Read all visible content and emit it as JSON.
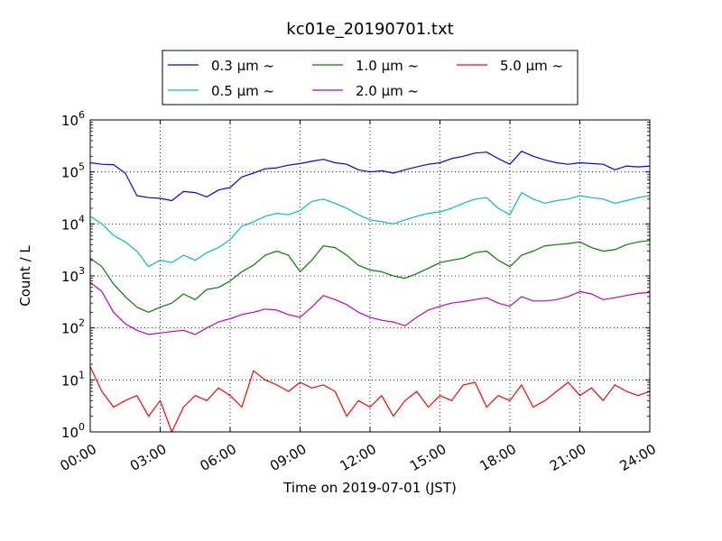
{
  "chart_data": {
    "type": "line",
    "title": "kc01e_20190701.txt",
    "xlabel": "Time on 2019-07-01 (JST)",
    "ylabel": "Count / L",
    "xlim": [
      0,
      24
    ],
    "ylim": [
      1,
      1000000
    ],
    "yscale": "log",
    "grid": true,
    "legend_position": "top-center",
    "x_ticks": [
      0,
      3,
      6,
      9,
      12,
      15,
      18,
      21,
      24
    ],
    "x_tick_labels": [
      "00:00",
      "03:00",
      "06:00",
      "09:00",
      "12:00",
      "15:00",
      "18:00",
      "21:00",
      "24:00"
    ],
    "y_tick_labels": [
      {
        "base": "10",
        "exp": "0"
      },
      {
        "base": "10",
        "exp": "1"
      },
      {
        "base": "10",
        "exp": "2"
      },
      {
        "base": "10",
        "exp": "3"
      },
      {
        "base": "10",
        "exp": "4"
      },
      {
        "base": "10",
        "exp": "5"
      },
      {
        "base": "10",
        "exp": "6"
      }
    ],
    "x": [
      0,
      0.5,
      1,
      1.5,
      2,
      2.5,
      3,
      3.5,
      4,
      4.5,
      5,
      5.5,
      6,
      6.5,
      7,
      7.5,
      8,
      8.5,
      9,
      9.5,
      10,
      10.5,
      11,
      11.5,
      12,
      12.5,
      13,
      13.5,
      14,
      14.5,
      15,
      15.5,
      16,
      16.5,
      17,
      17.5,
      18,
      18.5,
      19,
      19.5,
      20,
      20.5,
      21,
      21.5,
      22,
      22.5,
      23,
      23.5,
      24
    ],
    "series": [
      {
        "name": "0.3 μm ~",
        "color": "#0000ff",
        "values": [
          150000,
          140000,
          138000,
          95000,
          35000,
          32000,
          31000,
          28000,
          42000,
          40000,
          33000,
          45000,
          50000,
          80000,
          95000,
          115000,
          120000,
          135000,
          145000,
          160000,
          175000,
          150000,
          140000,
          110000,
          100000,
          105000,
          95000,
          110000,
          125000,
          140000,
          150000,
          180000,
          200000,
          230000,
          240000,
          180000,
          140000,
          250000,
          200000,
          170000,
          150000,
          140000,
          150000,
          145000,
          140000,
          110000,
          130000,
          125000,
          130000
        ]
      },
      {
        "name": "0.5 μm ~",
        "color": "#00bfbf",
        "values": [
          14000,
          10000,
          6000,
          4500,
          3000,
          1500,
          2000,
          1800,
          2500,
          2000,
          2800,
          3500,
          5000,
          9000,
          11000,
          14000,
          16000,
          15000,
          18000,
          27000,
          30000,
          25000,
          20000,
          15000,
          12000,
          11000,
          10000,
          12000,
          14000,
          16000,
          17000,
          20000,
          25000,
          30000,
          32000,
          20000,
          15000,
          40000,
          30000,
          25000,
          28000,
          30000,
          35000,
          32000,
          30000,
          25000,
          28000,
          32000,
          35000
        ]
      },
      {
        "name": "1.0 μm ~",
        "color": "#008000",
        "values": [
          2200,
          1500,
          700,
          400,
          250,
          200,
          250,
          300,
          450,
          350,
          550,
          600,
          800,
          1200,
          1600,
          2500,
          3000,
          2500,
          1200,
          2000,
          3800,
          3500,
          2500,
          1600,
          1300,
          1200,
          1000,
          900,
          1100,
          1400,
          1800,
          2000,
          2200,
          2800,
          3000,
          2000,
          1500,
          2500,
          3000,
          3800,
          4000,
          4200,
          4500,
          3500,
          3000,
          3200,
          4000,
          4500,
          4800
        ]
      },
      {
        "name": "2.0 μm ~",
        "color": "#bf00bf",
        "values": [
          750,
          500,
          200,
          120,
          90,
          75,
          80,
          85,
          90,
          75,
          100,
          130,
          150,
          180,
          200,
          230,
          220,
          180,
          160,
          250,
          420,
          350,
          280,
          200,
          160,
          140,
          130,
          110,
          160,
          220,
          260,
          300,
          320,
          350,
          380,
          300,
          260,
          400,
          330,
          330,
          350,
          400,
          500,
          450,
          350,
          380,
          420,
          460,
          480
        ]
      },
      {
        "name": "5.0 μm ~",
        "color": "#ff0000",
        "values": [
          18,
          6,
          3,
          4,
          5,
          2,
          4,
          1,
          3,
          5,
          4,
          7,
          5,
          3,
          15,
          10,
          8,
          6,
          9,
          7,
          8,
          6,
          2,
          4,
          3,
          5,
          2,
          4,
          6,
          3,
          5,
          4,
          8,
          9,
          3,
          5,
          4,
          8,
          3,
          4,
          6,
          9,
          5,
          7,
          4,
          8,
          6,
          5,
          6
        ]
      }
    ]
  }
}
